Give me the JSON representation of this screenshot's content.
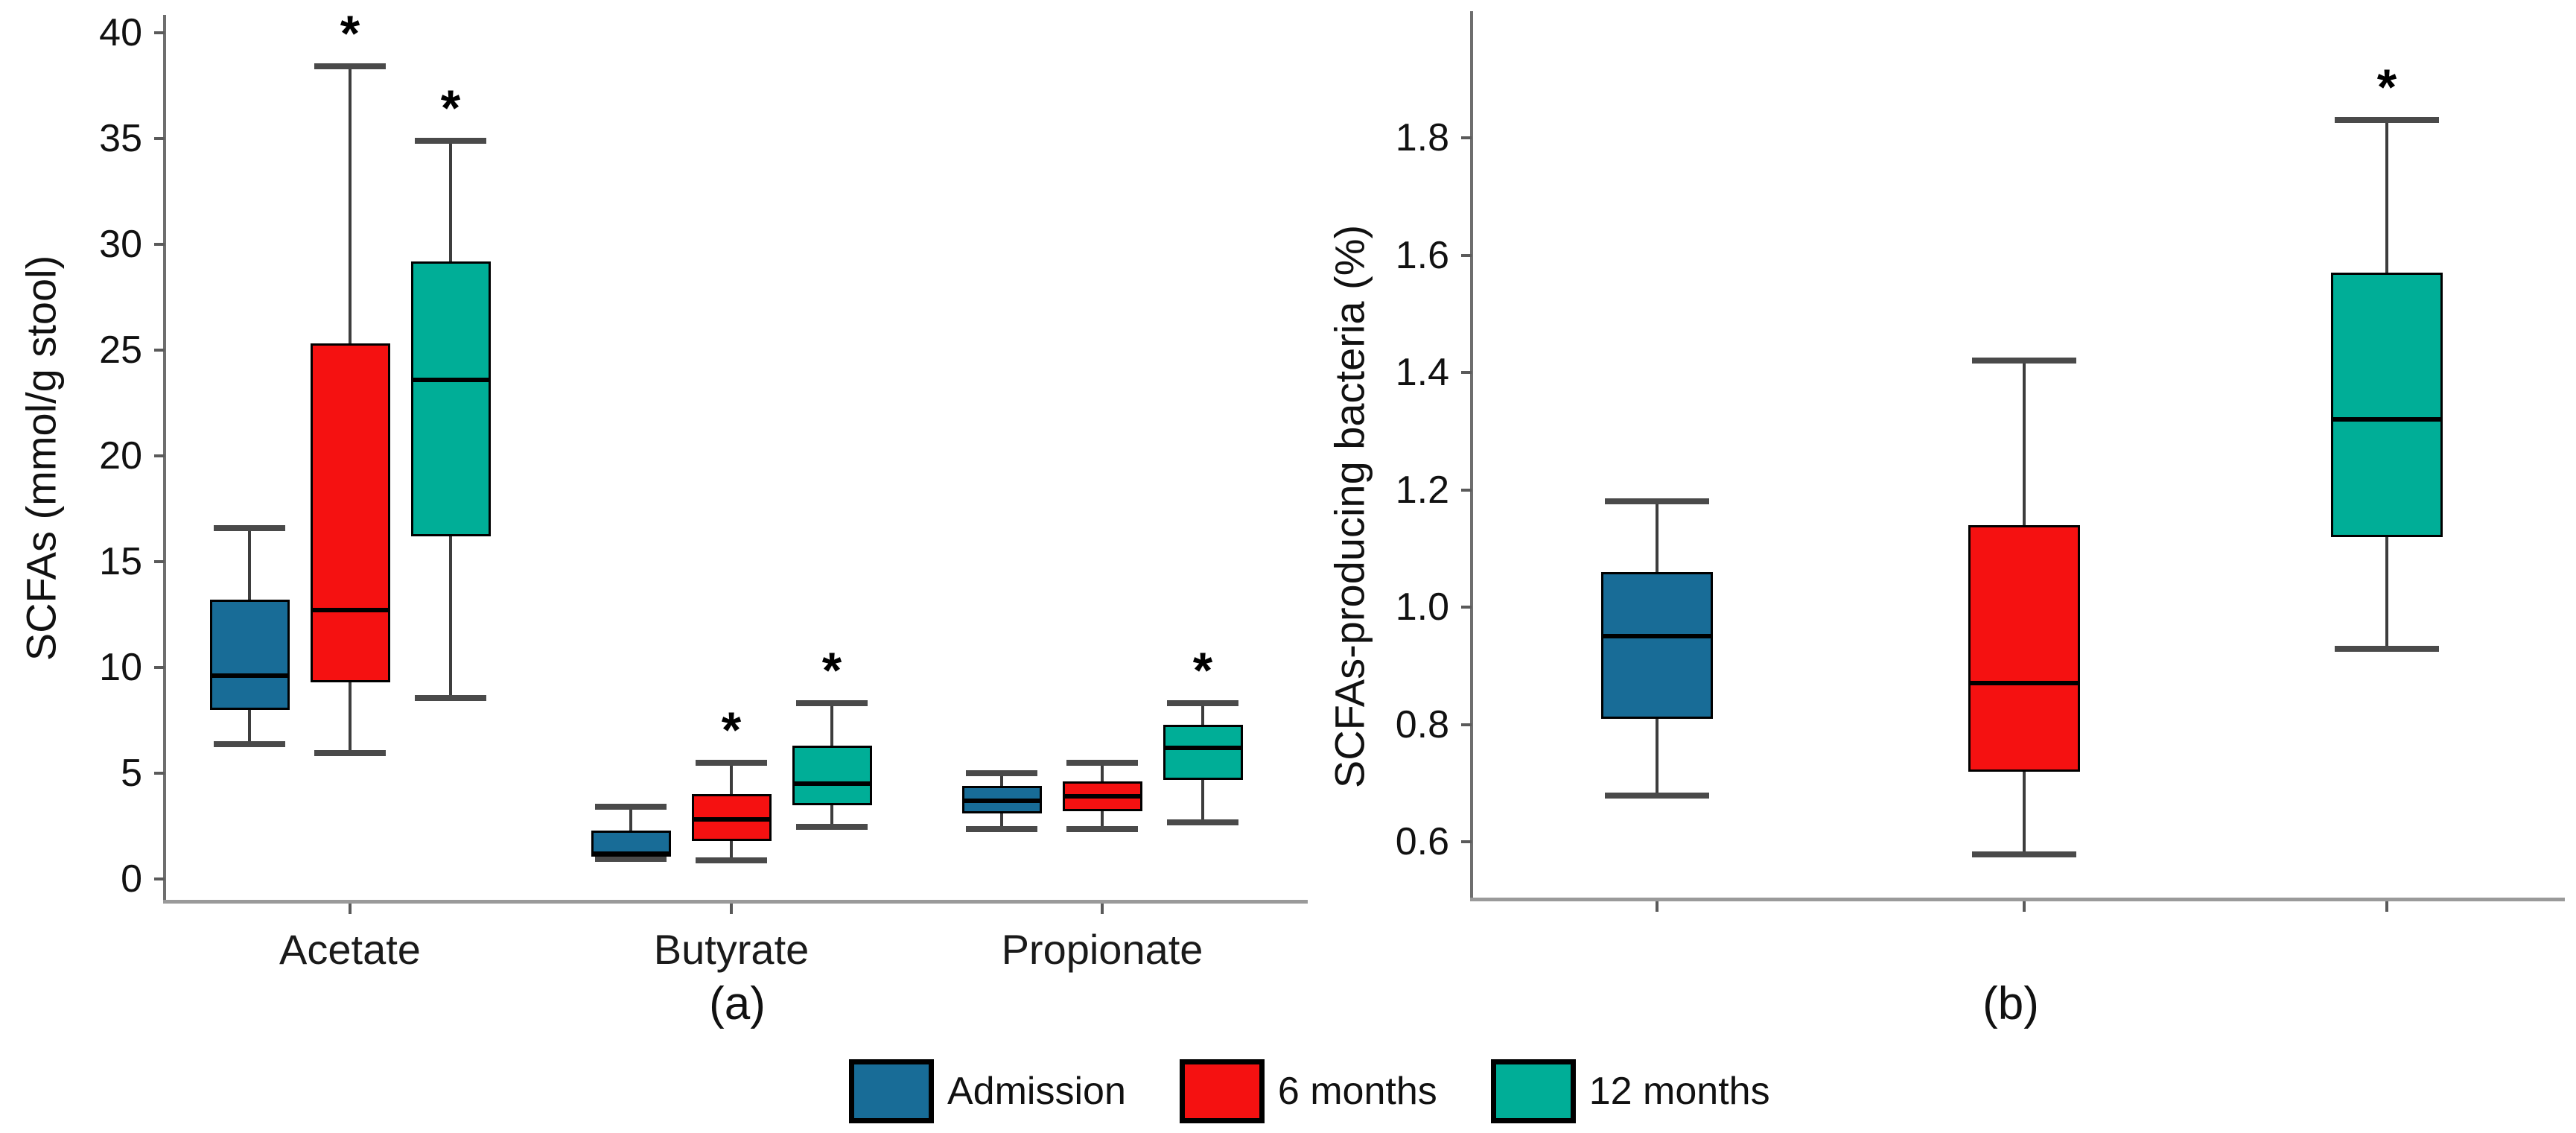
{
  "significance_marker": "*",
  "colors": {
    "admission": "#186C97",
    "six_months": "#F51111",
    "twelve_months": "#00AE97",
    "axis": "#9a9a9a",
    "whisker": "#3d3d3d"
  },
  "legend": {
    "items": [
      {
        "label": "Admission",
        "color": "#186C97"
      },
      {
        "label": "6 months",
        "color": "#F51111"
      },
      {
        "label": "12 months",
        "color": "#00AE97"
      }
    ]
  },
  "chart_data": [
    {
      "type": "box",
      "panel_label": "(a)",
      "ylabel": "SCFAs (mmol/g stool)",
      "xlabel": "",
      "categories": [
        "Acetate",
        "Butyrate",
        "Propionate"
      ],
      "ylim": [
        0,
        40
      ],
      "yticks": [
        0,
        5,
        10,
        15,
        20,
        25,
        30,
        35,
        40
      ],
      "grid": false,
      "legend_position": "bottom",
      "series": [
        {
          "name": "Admission",
          "color": "#186C97",
          "data": [
            {
              "category": "Acetate",
              "min": 6.4,
              "q1": 8.0,
              "median": 9.6,
              "q3": 13.2,
              "max": 16.6,
              "significant": false
            },
            {
              "category": "Butyrate",
              "min": 1.0,
              "q1": 1.05,
              "median": 1.2,
              "q3": 2.3,
              "max": 3.4,
              "significant": false
            },
            {
              "category": "Propionate",
              "min": 2.4,
              "q1": 3.1,
              "median": 3.7,
              "q3": 4.4,
              "max": 5.0,
              "significant": false
            }
          ]
        },
        {
          "name": "6 months",
          "color": "#F51111",
          "data": [
            {
              "category": "Acetate",
              "min": 6.0,
              "q1": 9.3,
              "median": 12.7,
              "q3": 25.3,
              "max": 38.4,
              "significant": true
            },
            {
              "category": "Butyrate",
              "min": 0.9,
              "q1": 1.8,
              "median": 2.8,
              "q3": 4.0,
              "max": 5.5,
              "significant": true
            },
            {
              "category": "Propionate",
              "min": 2.4,
              "q1": 3.2,
              "median": 3.9,
              "q3": 4.6,
              "max": 5.5,
              "significant": false
            }
          ]
        },
        {
          "name": "12 months",
          "color": "#00AE97",
          "data": [
            {
              "category": "Acetate",
              "min": 8.6,
              "q1": 16.2,
              "median": 23.6,
              "q3": 29.2,
              "max": 34.9,
              "significant": true
            },
            {
              "category": "Butyrate",
              "min": 2.5,
              "q1": 3.5,
              "median": 4.5,
              "q3": 6.3,
              "max": 8.3,
              "significant": true
            },
            {
              "category": "Propionate",
              "min": 2.7,
              "q1": 4.7,
              "median": 6.2,
              "q3": 7.3,
              "max": 8.3,
              "significant": true
            }
          ]
        }
      ]
    },
    {
      "type": "box",
      "panel_label": "(b)",
      "ylabel": "SCFAs-producing bacteria (%)",
      "xlabel": "",
      "categories": [
        "Admission",
        "6 months",
        "12 months"
      ],
      "category_labels_visible": false,
      "ylim": [
        0.5,
        2.0
      ],
      "yticks": [
        0.6,
        0.8,
        1.0,
        1.2,
        1.4,
        1.6,
        1.8
      ],
      "grid": false,
      "legend_position": "bottom",
      "series": [
        {
          "name": "Admission",
          "color": "#186C97",
          "data": [
            {
              "category": "Admission",
              "min": 0.68,
              "q1": 0.81,
              "median": 0.95,
              "q3": 1.06,
              "max": 1.18,
              "significant": false
            }
          ]
        },
        {
          "name": "6 months",
          "color": "#F51111",
          "data": [
            {
              "category": "6 months",
              "min": 0.58,
              "q1": 0.72,
              "median": 0.87,
              "q3": 1.14,
              "max": 1.42,
              "significant": false
            }
          ]
        },
        {
          "name": "12 months",
          "color": "#00AE97",
          "data": [
            {
              "category": "12 months",
              "min": 0.93,
              "q1": 1.12,
              "median": 1.32,
              "q3": 1.57,
              "max": 1.83,
              "significant": true
            }
          ]
        }
      ]
    }
  ]
}
